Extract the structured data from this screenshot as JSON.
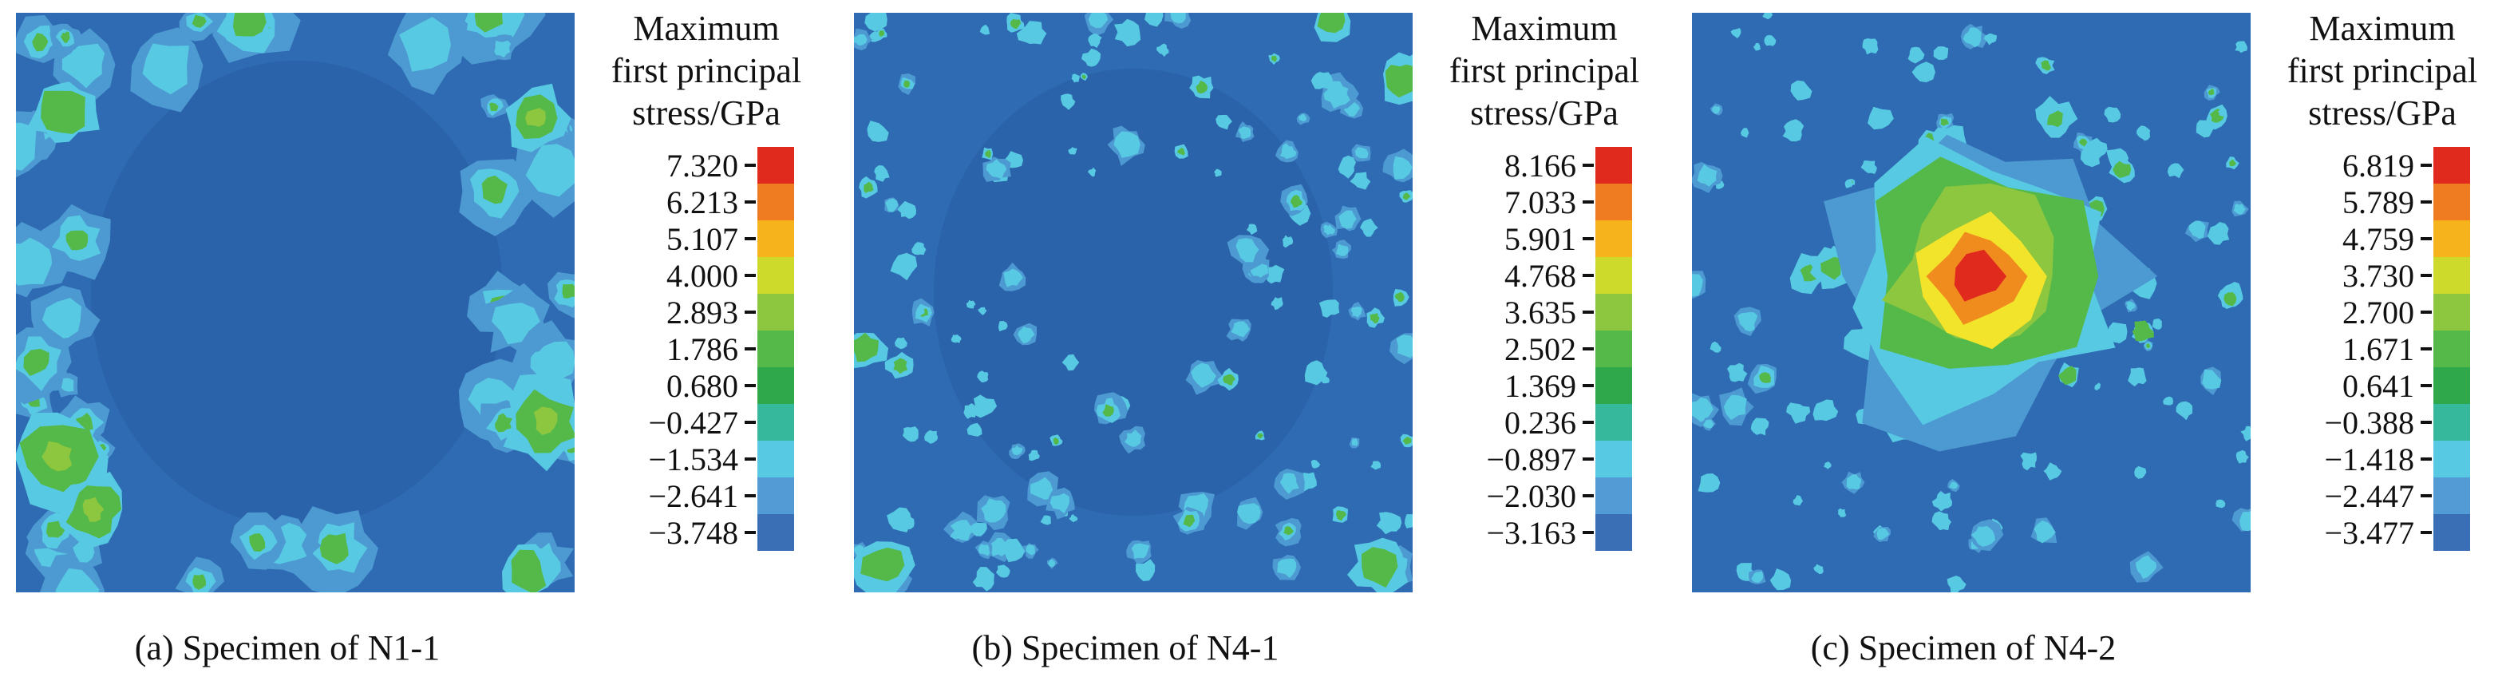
{
  "figure": {
    "legend_title_lines": [
      "Maximum",
      "first principal",
      "stress/GPa"
    ],
    "legend_colors_top_to_bottom": [
      "#e02a1e",
      "#f07c22",
      "#f7b31c",
      "#cdd92b",
      "#8dc63f",
      "#54b948",
      "#2fa84c",
      "#35b89b",
      "#58c9e2",
      "#539bd5",
      "#3a6eb5"
    ],
    "plot_palette": {
      "base_blue": "#2e6bb2",
      "dark_blue": "#2a63a9",
      "light_blue": "#4d99d2",
      "cyan": "#58c9e2",
      "green": "#54b948",
      "lime": "#8dc63f",
      "yellow": "#f2e32b",
      "orange": "#f08c1e",
      "red": "#e02a1e"
    },
    "panels": [
      {
        "caption": "(a) Specimen of N1-1",
        "ticks": [
          "7.320",
          "6.213",
          "5.107",
          "4.000",
          "2.893",
          "1.786",
          "0.680",
          "−0.427",
          "−1.534",
          "−2.641",
          "−3.748"
        ],
        "pattern": "edge-bands",
        "seed": 11
      },
      {
        "caption": "(b) Specimen of N4-1",
        "ticks": [
          "8.166",
          "7.033",
          "5.901",
          "4.768",
          "3.635",
          "2.502",
          "1.369",
          "0.236",
          "−0.897",
          "−2.030",
          "−3.163"
        ],
        "pattern": "scatter-ring",
        "seed": 41
      },
      {
        "caption": "(c) Specimen of N4-2",
        "ticks": [
          "6.819",
          "5.789",
          "4.759",
          "3.730",
          "2.700",
          "1.671",
          "0.641",
          "−0.388",
          "−1.418",
          "−2.447",
          "−3.477"
        ],
        "pattern": "center-hotspot",
        "seed": 42
      }
    ]
  },
  "chart_data": [
    {
      "type": "heatmap",
      "title": "(a) Specimen of N1-1",
      "legend_title": "Maximum first principal stress/GPa",
      "units": "GPa",
      "legend_ticks": [
        7.32,
        6.213,
        5.107,
        4.0,
        2.893,
        1.786,
        0.68,
        -0.427,
        -1.534,
        -2.641,
        -3.748
      ],
      "value_range": [
        -3.748,
        7.32
      ],
      "colormap": "rainbow, red = max, blue = min, 11 discrete bands",
      "legend_position": "right",
      "distribution": "mostly low-stress dark blue field; elevated-stress cyan/green bands concentrated along the left and right edges, with a few patches along the top and bottom edges"
    },
    {
      "type": "heatmap",
      "title": "(b) Specimen of N4-1",
      "legend_title": "Maximum first principal stress/GPa",
      "units": "GPa",
      "legend_ticks": [
        8.166,
        7.033,
        5.901,
        4.768,
        3.635,
        2.502,
        1.369,
        0.236,
        -0.897,
        -2.03,
        -3.163
      ],
      "value_range": [
        -3.163,
        8.166
      ],
      "colormap": "rainbow, red = max, blue = min, 11 discrete bands",
      "legend_position": "right",
      "distribution": "low-stress blue field with many small scattered cyan/green speckles forming a loose ring around the center and clustered near the edges and corners"
    },
    {
      "type": "heatmap",
      "title": "(c) Specimen of N4-2",
      "legend_title": "Maximum first principal stress/GPa",
      "units": "GPa",
      "legend_ticks": [
        6.819,
        5.789,
        4.759,
        3.73,
        2.7,
        1.671,
        0.641,
        -0.388,
        -1.418,
        -2.447,
        -3.477
      ],
      "value_range": [
        -3.477,
        6.819
      ],
      "colormap": "rainbow, red = max, blue = min, 11 discrete bands",
      "legend_position": "right",
      "distribution": "strong central stress concentration: red maximum core surrounded by orange, yellow, lime and green rings fading to cyan and blue, with scattered cyan speckles elsewhere"
    }
  ]
}
